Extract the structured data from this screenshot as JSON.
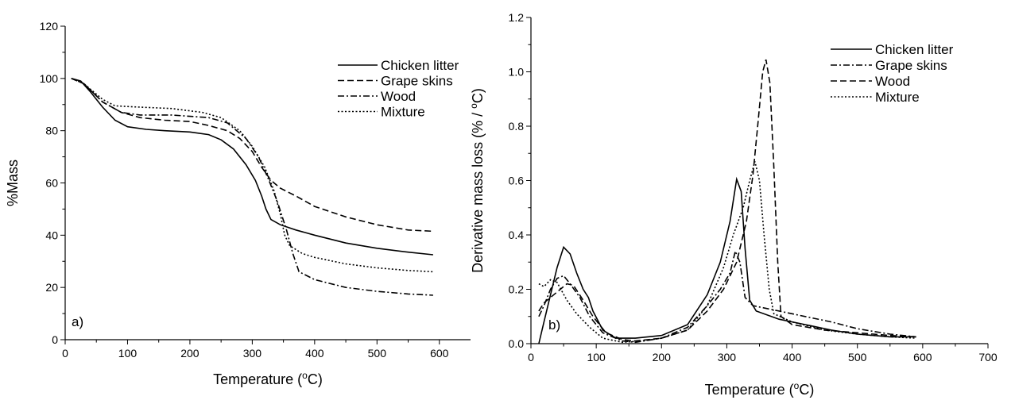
{
  "chart_data": [
    {
      "type": "line",
      "panel_label": "a)",
      "xlabel": "Temperature (°C)",
      "ylabel": "%Mass",
      "xlim": [
        0,
        650
      ],
      "ylim": [
        0,
        120
      ],
      "xticks": [
        0,
        100,
        200,
        300,
        400,
        500,
        600
      ],
      "yticks": [
        0,
        20,
        40,
        60,
        80,
        100,
        120
      ],
      "legend_position": "top-right",
      "series": [
        {
          "name": "Chicken litter",
          "dash": "solid",
          "points": [
            [
              10,
              100
            ],
            [
              25,
              99
            ],
            [
              40,
              95
            ],
            [
              60,
              89
            ],
            [
              80,
              84
            ],
            [
              100,
              81.5
            ],
            [
              130,
              80.5
            ],
            [
              160,
              80
            ],
            [
              200,
              79.5
            ],
            [
              230,
              78.5
            ],
            [
              250,
              76.5
            ],
            [
              270,
              73
            ],
            [
              290,
              67
            ],
            [
              305,
              61
            ],
            [
              315,
              55
            ],
            [
              322,
              50
            ],
            [
              330,
              46
            ],
            [
              345,
              44
            ],
            [
              370,
              42
            ],
            [
              400,
              40
            ],
            [
              450,
              37
            ],
            [
              500,
              35
            ],
            [
              550,
              33.5
            ],
            [
              590,
              32.5
            ]
          ]
        },
        {
          "name": "Grape skins",
          "dash": "dashed",
          "points": [
            [
              10,
              100
            ],
            [
              30,
              98
            ],
            [
              60,
              91
            ],
            [
              90,
              87
            ],
            [
              120,
              85
            ],
            [
              160,
              84
            ],
            [
              200,
              83.5
            ],
            [
              230,
              82
            ],
            [
              260,
              80
            ],
            [
              280,
              77
            ],
            [
              300,
              72
            ],
            [
              315,
              66
            ],
            [
              330,
              61
            ],
            [
              345,
              58
            ],
            [
              370,
              55
            ],
            [
              400,
              51
            ],
            [
              450,
              47
            ],
            [
              500,
              44
            ],
            [
              550,
              42
            ],
            [
              590,
              41.5
            ]
          ]
        },
        {
          "name": "Wood",
          "dash": "dashdot",
          "points": [
            [
              10,
              100
            ],
            [
              30,
              98
            ],
            [
              60,
              91
            ],
            [
              90,
              87
            ],
            [
              120,
              86
            ],
            [
              170,
              86
            ],
            [
              230,
              85
            ],
            [
              260,
              83
            ],
            [
              290,
              77
            ],
            [
              310,
              70
            ],
            [
              325,
              62
            ],
            [
              340,
              53
            ],
            [
              355,
              42
            ],
            [
              365,
              33
            ],
            [
              375,
              26
            ],
            [
              400,
              23
            ],
            [
              450,
              20
            ],
            [
              500,
              18.5
            ],
            [
              550,
              17.5
            ],
            [
              590,
              17
            ]
          ]
        },
        {
          "name": "Mixture",
          "dash": "dotted",
          "points": [
            [
              10,
              100
            ],
            [
              30,
              98
            ],
            [
              60,
              92
            ],
            [
              80,
              89.5
            ],
            [
              120,
              89
            ],
            [
              170,
              88.5
            ],
            [
              220,
              87
            ],
            [
              250,
              85
            ],
            [
              280,
              80
            ],
            [
              300,
              74
            ],
            [
              320,
              66
            ],
            [
              335,
              57
            ],
            [
              345,
              48
            ],
            [
              352,
              40
            ],
            [
              360,
              36
            ],
            [
              380,
              33
            ],
            [
              400,
              31.5
            ],
            [
              450,
              29
            ],
            [
              500,
              27.5
            ],
            [
              550,
              26.5
            ],
            [
              590,
              26
            ]
          ]
        }
      ]
    },
    {
      "type": "line",
      "panel_label": "b)",
      "xlabel": "Temperature (°C)",
      "ylabel": "Derivative mass loss (% / °C)",
      "xlim": [
        0,
        700
      ],
      "ylim": [
        0,
        1.2
      ],
      "xticks": [
        0,
        100,
        200,
        300,
        400,
        500,
        600,
        700
      ],
      "yticks": [
        0.0,
        0.2,
        0.4,
        0.6,
        0.8,
        1.0,
        1.2
      ],
      "legend_position": "top-right",
      "series": [
        {
          "name": "Chicken litter",
          "dash": "solid",
          "points": [
            [
              12,
              0.0
            ],
            [
              20,
              0.08
            ],
            [
              30,
              0.18
            ],
            [
              40,
              0.28
            ],
            [
              50,
              0.355
            ],
            [
              60,
              0.33
            ],
            [
              70,
              0.26
            ],
            [
              80,
              0.2
            ],
            [
              88,
              0.17
            ],
            [
              95,
              0.12
            ],
            [
              110,
              0.05
            ],
            [
              130,
              0.02
            ],
            [
              160,
              0.02
            ],
            [
              200,
              0.03
            ],
            [
              240,
              0.07
            ],
            [
              270,
              0.18
            ],
            [
              290,
              0.3
            ],
            [
              305,
              0.45
            ],
            [
              315,
              0.605
            ],
            [
              322,
              0.56
            ],
            [
              328,
              0.35
            ],
            [
              335,
              0.16
            ],
            [
              345,
              0.12
            ],
            [
              380,
              0.09
            ],
            [
              420,
              0.07
            ],
            [
              460,
              0.05
            ],
            [
              500,
              0.035
            ],
            [
              550,
              0.025
            ],
            [
              590,
              0.025
            ]
          ]
        },
        {
          "name": "Grape skins",
          "dash": "dashdot",
          "points": [
            [
              12,
              0.1
            ],
            [
              20,
              0.14
            ],
            [
              30,
              0.2
            ],
            [
              40,
              0.24
            ],
            [
              50,
              0.25
            ],
            [
              60,
              0.22
            ],
            [
              75,
              0.17
            ],
            [
              90,
              0.1
            ],
            [
              110,
              0.04
            ],
            [
              140,
              0.01
            ],
            [
              160,
              0.005
            ],
            [
              200,
              0.02
            ],
            [
              240,
              0.06
            ],
            [
              270,
              0.14
            ],
            [
              290,
              0.2
            ],
            [
              305,
              0.26
            ],
            [
              313,
              0.34
            ],
            [
              320,
              0.3
            ],
            [
              328,
              0.17
            ],
            [
              340,
              0.14
            ],
            [
              380,
              0.12
            ],
            [
              420,
              0.1
            ],
            [
              460,
              0.08
            ],
            [
              500,
              0.055
            ],
            [
              550,
              0.035
            ],
            [
              590,
              0.025
            ]
          ]
        },
        {
          "name": "Wood",
          "dash": "dashed",
          "points": [
            [
              12,
              0.12
            ],
            [
              20,
              0.15
            ],
            [
              30,
              0.17
            ],
            [
              40,
              0.19
            ],
            [
              55,
              0.22
            ],
            [
              65,
              0.215
            ],
            [
              80,
              0.16
            ],
            [
              95,
              0.1
            ],
            [
              115,
              0.04
            ],
            [
              140,
              0.015
            ],
            [
              160,
              0.01
            ],
            [
              200,
              0.02
            ],
            [
              240,
              0.05
            ],
            [
              270,
              0.12
            ],
            [
              295,
              0.2
            ],
            [
              315,
              0.3
            ],
            [
              330,
              0.45
            ],
            [
              340,
              0.62
            ],
            [
              348,
              0.82
            ],
            [
              355,
              1.0
            ],
            [
              360,
              1.045
            ],
            [
              366,
              0.96
            ],
            [
              372,
              0.65
            ],
            [
              378,
              0.3
            ],
            [
              383,
              0.1
            ],
            [
              400,
              0.07
            ],
            [
              450,
              0.05
            ],
            [
              500,
              0.04
            ],
            [
              550,
              0.03
            ],
            [
              590,
              0.025
            ]
          ]
        },
        {
          "name": "Mixture",
          "dash": "dotted",
          "points": [
            [
              12,
              0.22
            ],
            [
              20,
              0.21
            ],
            [
              30,
              0.235
            ],
            [
              40,
              0.225
            ],
            [
              55,
              0.16
            ],
            [
              70,
              0.11
            ],
            [
              90,
              0.06
            ],
            [
              110,
              0.02
            ],
            [
              140,
              0.005
            ],
            [
              170,
              0.01
            ],
            [
              200,
              0.02
            ],
            [
              240,
              0.05
            ],
            [
              270,
              0.14
            ],
            [
              295,
              0.28
            ],
            [
              310,
              0.4
            ],
            [
              325,
              0.5
            ],
            [
              335,
              0.6
            ],
            [
              343,
              0.67
            ],
            [
              350,
              0.6
            ],
            [
              357,
              0.4
            ],
            [
              365,
              0.2
            ],
            [
              372,
              0.11
            ],
            [
              400,
              0.08
            ],
            [
              450,
              0.05
            ],
            [
              500,
              0.035
            ],
            [
              550,
              0.025
            ],
            [
              590,
              0.02
            ]
          ]
        }
      ]
    }
  ]
}
